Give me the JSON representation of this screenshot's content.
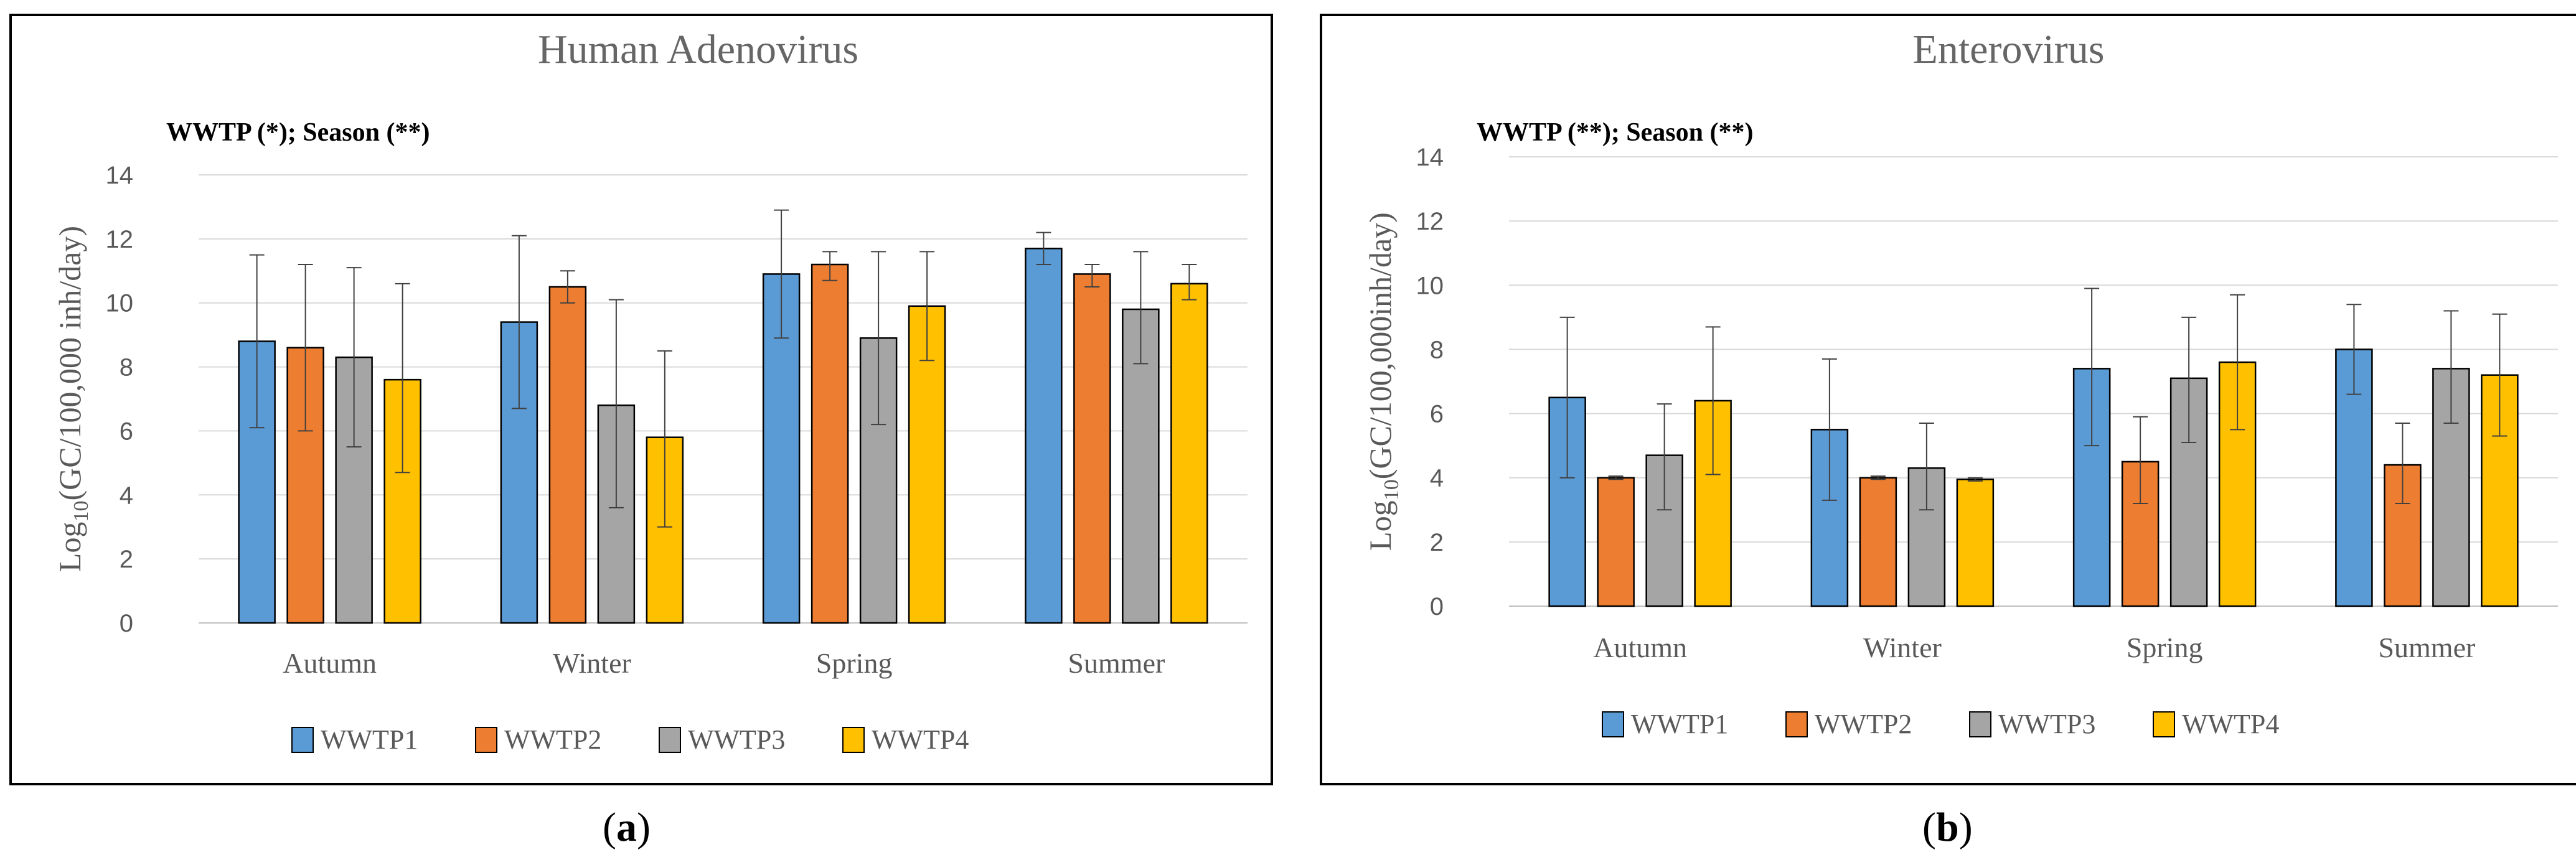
{
  "chart_data": [
    {
      "type": "bar",
      "title": "Human Adenovirus",
      "annotation": "WWTP (*); Season (**)",
      "ylabel_main": "Log",
      "ylabel_sub": "10",
      "ylabel_rest": "(GC/100,000 inh/day)",
      "xlabel": "",
      "ylim": [
        0,
        14
      ],
      "yticks": [
        0,
        2,
        4,
        6,
        8,
        10,
        12,
        14
      ],
      "grid": true,
      "legend_position": "bottom",
      "categories": [
        "Autumn",
        "Winter",
        "Spring",
        "Summer"
      ],
      "series": [
        {
          "name": "WWTP1",
          "color": "#5B9BD5",
          "values": [
            8.8,
            9.4,
            10.9,
            11.7
          ],
          "err_low": [
            6.1,
            6.7,
            8.9,
            11.2
          ],
          "err_high": [
            11.5,
            12.1,
            12.9,
            12.2
          ]
        },
        {
          "name": "WWTP2",
          "color": "#ED7D31",
          "values": [
            8.6,
            10.5,
            11.2,
            10.9
          ],
          "err_low": [
            6.0,
            10.0,
            10.7,
            10.5
          ],
          "err_high": [
            11.2,
            11.0,
            11.6,
            11.2
          ]
        },
        {
          "name": "WWTP3",
          "color": "#A5A5A5",
          "values": [
            8.3,
            6.8,
            8.9,
            9.8
          ],
          "err_low": [
            5.5,
            3.6,
            6.2,
            8.1
          ],
          "err_high": [
            11.1,
            10.1,
            11.6,
            11.6
          ]
        },
        {
          "name": "WWTP4",
          "color": "#FFC000",
          "values": [
            7.6,
            5.8,
            9.9,
            10.6
          ],
          "err_low": [
            4.7,
            3.0,
            8.2,
            10.1
          ],
          "err_high": [
            10.6,
            8.5,
            11.6,
            11.2
          ]
        }
      ]
    },
    {
      "type": "bar",
      "title": "Enterovirus",
      "annotation": "WWTP (**); Season (**)",
      "ylabel_main": "Log",
      "ylabel_sub": "10",
      "ylabel_rest": "(GC/100,000inh/day)",
      "xlabel": "",
      "ylim": [
        0,
        14
      ],
      "yticks": [
        0,
        2,
        4,
        6,
        8,
        10,
        12,
        14
      ],
      "grid": true,
      "legend_position": "bottom",
      "categories": [
        "Autumn",
        "Winter",
        "Spring",
        "Summer"
      ],
      "series": [
        {
          "name": "WWTP1",
          "color": "#5B9BD5",
          "values": [
            6.5,
            5.5,
            7.4,
            8.0
          ],
          "err_low": [
            4.0,
            3.3,
            5.0,
            6.6
          ],
          "err_high": [
            9.0,
            7.7,
            9.9,
            9.4
          ]
        },
        {
          "name": "WWTP2",
          "color": "#ED7D31",
          "values": [
            4.0,
            4.0,
            4.5,
            4.4
          ],
          "err_low": [
            3.95,
            3.95,
            3.2,
            3.2
          ],
          "err_high": [
            4.05,
            4.05,
            5.9,
            5.7
          ]
        },
        {
          "name": "WWTP3",
          "color": "#A5A5A5",
          "values": [
            4.7,
            4.3,
            7.1,
            7.4
          ],
          "err_low": [
            3.0,
            3.0,
            5.1,
            5.7
          ],
          "err_high": [
            6.3,
            5.7,
            9.0,
            9.2
          ]
        },
        {
          "name": "WWTP4",
          "color": "#FFC000",
          "values": [
            6.4,
            3.95,
            7.6,
            7.2
          ],
          "err_low": [
            4.1,
            3.9,
            5.5,
            5.3
          ],
          "err_high": [
            8.7,
            4.0,
            9.7,
            9.1
          ]
        }
      ]
    }
  ],
  "captions": [
    "a",
    "b"
  ]
}
